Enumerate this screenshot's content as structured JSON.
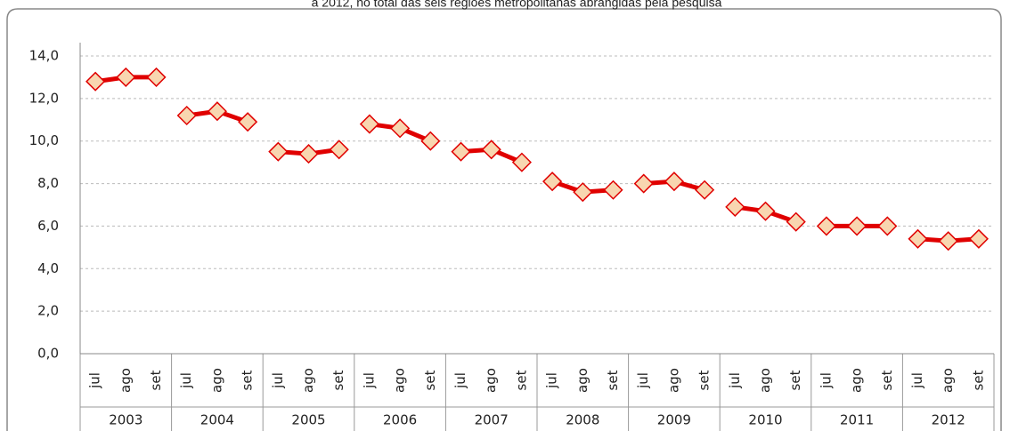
{
  "chart_data": {
    "type": "line",
    "title": "a 2012, no total das seis regiões metropolitanas abrangidas pela pesquisa",
    "color": "#e00000",
    "marker_color": "#f8d6b0",
    "groups": [
      {
        "name": "2003",
        "categories": [
          "jul",
          "ago",
          "set"
        ],
        "values": [
          12.8,
          13.0,
          13.0
        ]
      },
      {
        "name": "2004",
        "categories": [
          "jul",
          "ago",
          "set"
        ],
        "values": [
          11.2,
          11.4,
          10.9
        ]
      },
      {
        "name": "2005",
        "categories": [
          "jul",
          "ago",
          "set"
        ],
        "values": [
          9.5,
          9.4,
          9.6
        ]
      },
      {
        "name": "2006",
        "categories": [
          "jul",
          "ago",
          "set"
        ],
        "values": [
          10.8,
          10.6,
          10.0
        ]
      },
      {
        "name": "2007",
        "categories": [
          "jul",
          "ago",
          "set"
        ],
        "values": [
          9.5,
          9.6,
          9.0
        ]
      },
      {
        "name": "2008",
        "categories": [
          "jul",
          "ago",
          "set"
        ],
        "values": [
          8.1,
          7.6,
          7.7
        ]
      },
      {
        "name": "2009",
        "categories": [
          "jul",
          "ago",
          "set"
        ],
        "values": [
          8.0,
          8.1,
          7.7
        ]
      },
      {
        "name": "2010",
        "categories": [
          "jul",
          "ago",
          "set"
        ],
        "values": [
          6.9,
          6.7,
          6.2
        ]
      },
      {
        "name": "2011",
        "categories": [
          "jul",
          "ago",
          "set"
        ],
        "values": [
          6.0,
          6.0,
          6.0
        ]
      },
      {
        "name": "2012",
        "categories": [
          "jul",
          "ago",
          "set"
        ],
        "values": [
          5.4,
          5.3,
          5.4
        ]
      }
    ],
    "ylim": [
      0,
      14
    ],
    "yticks": [
      {
        "value": 0,
        "label": "0,0"
      },
      {
        "value": 2,
        "label": "2,0"
      },
      {
        "value": 4,
        "label": "4,0"
      },
      {
        "value": 6,
        "label": "6,0"
      },
      {
        "value": 8,
        "label": "8,0"
      },
      {
        "value": 10,
        "label": "10,0"
      },
      {
        "value": 12,
        "label": "12,0"
      },
      {
        "value": 14,
        "label": "14,0"
      }
    ],
    "grid": true
  }
}
